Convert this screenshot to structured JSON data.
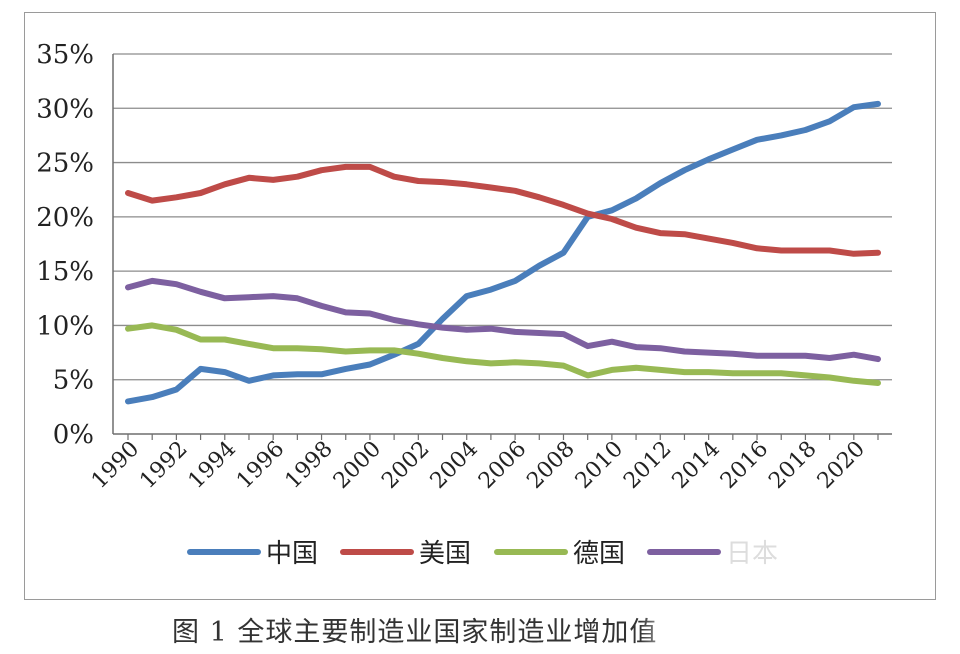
{
  "chart_data": {
    "type": "line",
    "title": "",
    "xlabel": "",
    "ylabel": "",
    "ylim": [
      0,
      35
    ],
    "yticks": [
      "0%",
      "5%",
      "10%",
      "15%",
      "20%",
      "25%",
      "30%",
      "35%"
    ],
    "ytick_values": [
      0,
      5,
      10,
      15,
      20,
      25,
      30,
      35
    ],
    "xticks": [
      "1990",
      "1992",
      "1994",
      "1996",
      "1998",
      "2000",
      "2002",
      "2004",
      "2006",
      "2008",
      "2010",
      "2012",
      "2014",
      "2016",
      "2018",
      "2020"
    ],
    "x": [
      1990,
      1991,
      1992,
      1993,
      1994,
      1995,
      1996,
      1997,
      1998,
      1999,
      2000,
      2001,
      2002,
      2003,
      2004,
      2005,
      2006,
      2007,
      2008,
      2009,
      2010,
      2011,
      2012,
      2013,
      2014,
      2015,
      2016,
      2017,
      2018,
      2019,
      2020,
      2021
    ],
    "grid": true,
    "legend_position": "bottom",
    "series": [
      {
        "name": "中国",
        "color": "#4a7ebb",
        "values": [
          3.0,
          3.4,
          4.1,
          6.0,
          5.7,
          4.9,
          5.4,
          5.5,
          5.5,
          6.0,
          6.4,
          7.3,
          8.3,
          10.6,
          12.7,
          13.3,
          14.1,
          15.5,
          16.7,
          20.0,
          20.6,
          21.7,
          23.1,
          24.3,
          25.3,
          26.2,
          27.1,
          27.5,
          28.0,
          28.8,
          30.1,
          30.4
        ]
      },
      {
        "name": "美国",
        "color": "#be4b48",
        "values": [
          22.2,
          21.5,
          21.8,
          22.2,
          23.0,
          23.6,
          23.4,
          23.7,
          24.3,
          24.6,
          24.6,
          23.7,
          23.3,
          23.2,
          23.0,
          22.7,
          22.4,
          21.8,
          21.1,
          20.3,
          19.8,
          19.0,
          18.5,
          18.4,
          18.0,
          17.6,
          17.1,
          16.9,
          16.9,
          16.9,
          16.6,
          16.7
        ]
      },
      {
        "name": "德国",
        "color": "#98b954",
        "values": [
          9.7,
          10.0,
          9.6,
          8.7,
          8.7,
          8.3,
          7.9,
          7.9,
          7.8,
          7.6,
          7.7,
          7.7,
          7.4,
          7.0,
          6.7,
          6.5,
          6.6,
          6.5,
          6.3,
          5.4,
          5.9,
          6.1,
          5.9,
          5.7,
          5.7,
          5.6,
          5.6,
          5.6,
          5.4,
          5.2,
          4.9,
          4.7
        ]
      },
      {
        "name": "日本",
        "color": "#7d60a0",
        "values": [
          13.5,
          14.1,
          13.8,
          13.1,
          12.5,
          12.6,
          12.7,
          12.5,
          11.8,
          11.2,
          11.1,
          10.5,
          10.1,
          9.8,
          9.6,
          9.7,
          9.4,
          9.3,
          9.2,
          8.1,
          8.5,
          8.0,
          7.9,
          7.6,
          7.5,
          7.4,
          7.2,
          7.2,
          7.2,
          7.0,
          7.3,
          6.9
        ]
      }
    ]
  },
  "caption": "图 1  全球主要制造业国家制造业增加值"
}
